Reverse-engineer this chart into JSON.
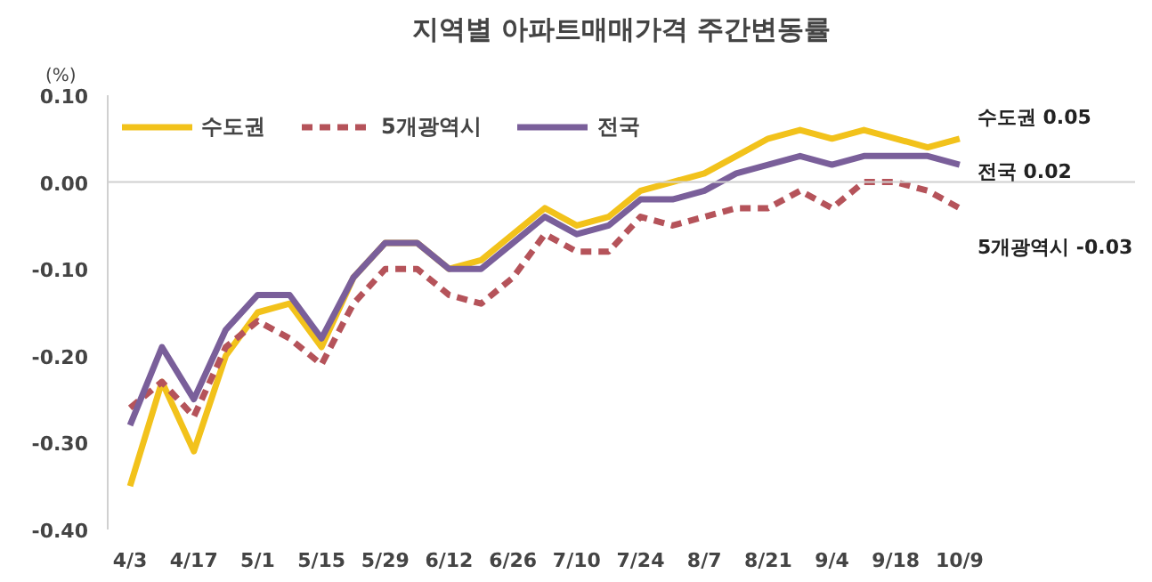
{
  "chart_data": {
    "type": "line",
    "title": "지역별 아파트매매가격 주간변동률",
    "ylabel": "(%)",
    "categories": [
      "4/3",
      null,
      "4/17",
      null,
      "5/1",
      null,
      "5/15",
      null,
      "5/29",
      null,
      "6/12",
      null,
      "6/26",
      null,
      "7/10",
      null,
      "7/24",
      null,
      "8/7",
      null,
      "8/21",
      null,
      "9/4",
      null,
      "9/18",
      null,
      "10/9"
    ],
    "series": [
      {
        "name": "수도권",
        "color": "#f2c21b",
        "line_style": "solid",
        "values": [
          -0.35,
          -0.23,
          -0.31,
          -0.2,
          -0.15,
          -0.14,
          -0.19,
          -0.11,
          -0.07,
          -0.07,
          -0.1,
          -0.09,
          -0.06,
          -0.03,
          -0.05,
          -0.04,
          -0.01,
          0.0,
          0.01,
          0.03,
          0.05,
          0.06,
          0.05,
          0.06,
          0.05,
          0.04,
          0.05
        ]
      },
      {
        "name": "5개광역시",
        "color": "#b5535a",
        "line_style": "dashed",
        "values": [
          -0.26,
          -0.23,
          -0.27,
          -0.19,
          -0.16,
          -0.18,
          -0.21,
          -0.14,
          -0.1,
          -0.1,
          -0.13,
          -0.14,
          -0.11,
          -0.06,
          -0.08,
          -0.08,
          -0.04,
          -0.05,
          -0.04,
          -0.03,
          -0.03,
          -0.01,
          -0.03,
          0.0,
          0.0,
          -0.01,
          -0.03
        ]
      },
      {
        "name": "전국",
        "color": "#7a5f9a",
        "line_style": "solid",
        "values": [
          -0.28,
          -0.19,
          -0.25,
          -0.17,
          -0.13,
          -0.13,
          -0.18,
          -0.11,
          -0.07,
          -0.07,
          -0.1,
          -0.1,
          -0.07,
          -0.04,
          -0.06,
          -0.05,
          -0.02,
          -0.02,
          -0.01,
          0.01,
          0.02,
          0.03,
          0.02,
          0.03,
          0.03,
          0.03,
          0.02
        ]
      }
    ],
    "ylim": [
      -0.4,
      0.1
    ],
    "yticks": [
      {
        "value": 0.1,
        "label": "0.10"
      },
      {
        "value": 0,
        "label": "0.00"
      },
      {
        "value": -0.1,
        "label": "-0.10"
      },
      {
        "value": -0.2,
        "label": "-0.20"
      },
      {
        "value": -0.3,
        "label": "-0.30"
      },
      {
        "value": -0.4,
        "label": "-0.40"
      }
    ],
    "ref_lines": [
      {
        "axis": "y",
        "value": 0,
        "color": "#d0d0d0"
      }
    ],
    "grid": false,
    "legend": "top",
    "marker": "none",
    "annotations": [
      {
        "text": "수도권 0.05",
        "x": "10/9",
        "y": 0.05
      },
      {
        "text": "전국 0.02",
        "x": "10/9",
        "y": 0.02
      },
      {
        "text": "5개광역시 -0.03",
        "x": "10/9",
        "y": -0.03
      }
    ]
  }
}
